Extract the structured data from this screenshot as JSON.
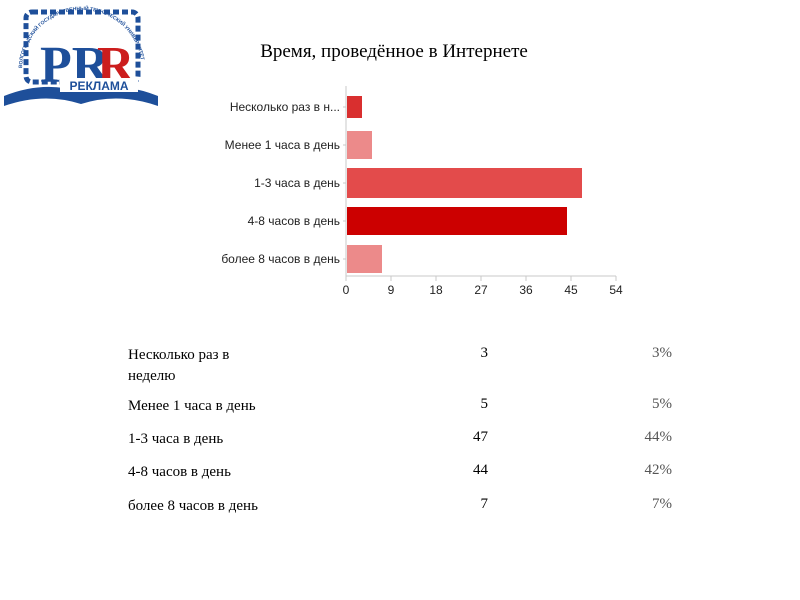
{
  "logo": {
    "text": "РЕКЛАМА",
    "letters": "PR",
    "ring_text": "ВОЛГОГРАДСКИЙ ГОСУДАРСТВЕННЫЙ ТЕХНИЧЕСКИЙ УНИВЕРСИТЕТ"
  },
  "title": "Время, проведённое в Интернете",
  "colors": {
    "bar_mid": "#e34b4b",
    "bar_dark": "#cc0000",
    "bar_light": "#ec8a8a",
    "bar_small": "#d92f2f",
    "axis": "#c8c8c8"
  },
  "chart_data": {
    "type": "bar",
    "orientation": "horizontal",
    "title": "Время, проведённое в Интернете",
    "categories": [
      "Несколько раз в н...",
      "Менее 1 часа в день",
      "1-3 часа в день",
      "4-8 часов в день",
      "более 8 часов в день"
    ],
    "values": [
      3,
      5,
      47,
      44,
      7
    ],
    "xticks": [
      "0",
      "9",
      "18",
      "27",
      "36",
      "45",
      "54"
    ],
    "xlim": [
      0,
      54
    ],
    "grid": false,
    "legend": "none"
  },
  "table": {
    "rows": [
      {
        "label": "Несколько раз в неделю",
        "count": "3",
        "percent": "3%"
      },
      {
        "label": "Менее 1 часа в день",
        "count": "5",
        "percent": "5%"
      },
      {
        "label": "1-3 часа в день",
        "count": "47",
        "percent": "44%"
      },
      {
        "label": "4-8 часов в день",
        "count": "44",
        "percent": "42%"
      },
      {
        "label": "более 8 часов в день",
        "count": "7",
        "percent": "7%"
      }
    ]
  }
}
